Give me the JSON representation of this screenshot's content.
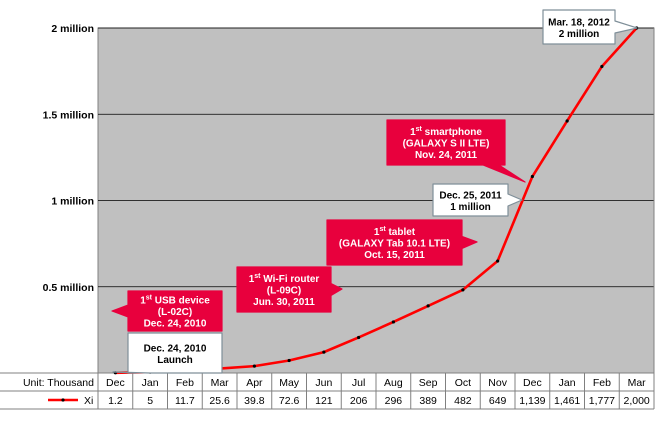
{
  "chart_data": {
    "type": "line",
    "categories": [
      "Dec",
      "Jan",
      "Feb",
      "Mar",
      "Apr",
      "May",
      "Jun",
      "Jul",
      "Aug",
      "Sep",
      "Oct",
      "Nov",
      "Dec",
      "Jan",
      "Feb",
      "Mar"
    ],
    "series": [
      {
        "name": "Xi",
        "values": [
          1.2,
          5,
          11.7,
          25.6,
          39.8,
          72.6,
          121,
          206,
          296,
          389,
          482,
          649,
          1139,
          1461,
          1777,
          2000
        ],
        "value_labels": [
          "1.2",
          "5",
          "11.7",
          "25.6",
          "39.8",
          "72.6",
          "121",
          "206",
          "296",
          "389",
          "482",
          "649",
          "1,139",
          "1,461",
          "1,777",
          "2,000"
        ],
        "color": "#ff0000"
      }
    ],
    "ylim": [
      0,
      2000
    ],
    "yticks": [
      {
        "value": 500,
        "label": "0.5 million"
      },
      {
        "value": 1000,
        "label": "1 million"
      },
      {
        "value": 1500,
        "label": "1.5 million"
      },
      {
        "value": 2000,
        "label": "2 million"
      }
    ],
    "unit_label": "Unit: Thousand",
    "grid": true,
    "plot_background": "#c0c0c0",
    "legend_placement": "table-row-left",
    "data_table": true,
    "annotations": [
      {
        "style": "white",
        "anchor_index": 0,
        "lines": [
          "Dec. 24, 2010",
          "Launch"
        ]
      },
      {
        "style": "red",
        "anchor_index": 0,
        "lines": [
          [
            "1",
            "st",
            " USB device"
          ],
          "(L-02C)",
          "Dec. 24, 2010"
        ]
      },
      {
        "style": "red",
        "anchor_index": 6,
        "lines": [
          [
            "1",
            "st",
            " Wi-Fi router"
          ],
          "(L-09C)",
          "Jun. 30, 2011"
        ]
      },
      {
        "style": "red",
        "anchor_index": 10,
        "lines": [
          [
            "1",
            "st",
            " tablet"
          ],
          "(GALAXY Tab 10.1 LTE)",
          "Oct. 15, 2011"
        ]
      },
      {
        "style": "white",
        "anchor_index": 12,
        "lines": [
          "Dec. 25, 2011",
          "1 million"
        ]
      },
      {
        "style": "red",
        "anchor_index": 12,
        "lines": [
          [
            "1",
            "st",
            " smartphone"
          ],
          "(GALAXY S II LTE)",
          "Nov. 24, 2011"
        ]
      },
      {
        "style": "white",
        "anchor_index": 15,
        "lines": [
          "Mar. 18, 2012",
          "2 million"
        ]
      }
    ]
  }
}
